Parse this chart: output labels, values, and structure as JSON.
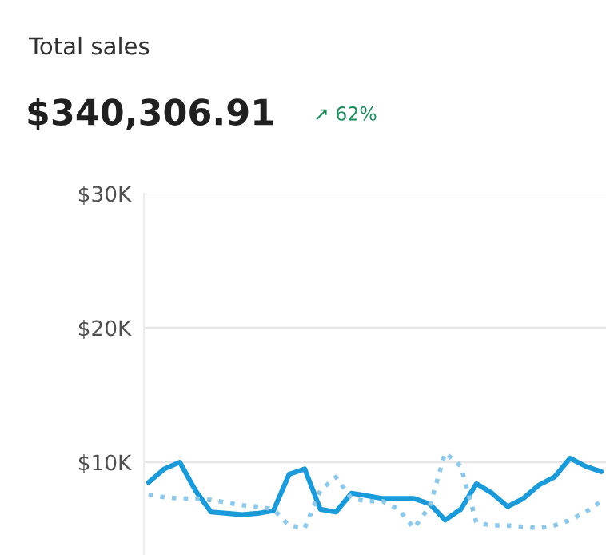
{
  "chart_data": {
    "type": "line",
    "title": "Total sales",
    "subtitle": "$340,306.91",
    "annotations": [
      "↗ 62%"
    ],
    "categories": [
      null,
      null,
      null,
      null,
      null,
      null,
      null,
      null,
      null,
      null,
      null,
      null,
      null,
      null,
      null,
      null,
      null,
      null,
      null,
      null,
      null,
      null,
      null,
      null,
      null,
      null,
      null,
      null,
      null,
      null
    ],
    "series": [
      {
        "color": "#1a9ad8",
        "line_style": "solid",
        "values": [
          8500,
          9500,
          10000,
          7900,
          6300,
          6200,
          6100,
          6200,
          6400,
          9100,
          9500,
          6500,
          6300,
          7700,
          7500,
          7300,
          7300,
          7300,
          6900,
          5700,
          6500,
          8400,
          7700,
          6700,
          7300,
          8300,
          8900,
          10300,
          9700,
          9300
        ]
      },
      {
        "color": "#8ec9ea",
        "line_style": "dotted",
        "values": [
          7600,
          7400,
          7300,
          7300,
          7200,
          7000,
          6800,
          6700,
          6500,
          5300,
          5100,
          7900,
          8900,
          7300,
          7100,
          7100,
          6500,
          5100,
          6700,
          10700,
          9700,
          5500,
          5300,
          5300,
          5200,
          5100,
          5300,
          5700,
          6300,
          7100
        ]
      }
    ],
    "ylim": [
      3100,
      30000
    ],
    "yticks": [
      {
        "value": 10000,
        "label": "$10K"
      },
      {
        "value": 20000,
        "label": "$20K"
      },
      {
        "value": 30000,
        "label": "$30K"
      }
    ],
    "grid": "y",
    "tick_labels": "y",
    "marker": "none"
  }
}
